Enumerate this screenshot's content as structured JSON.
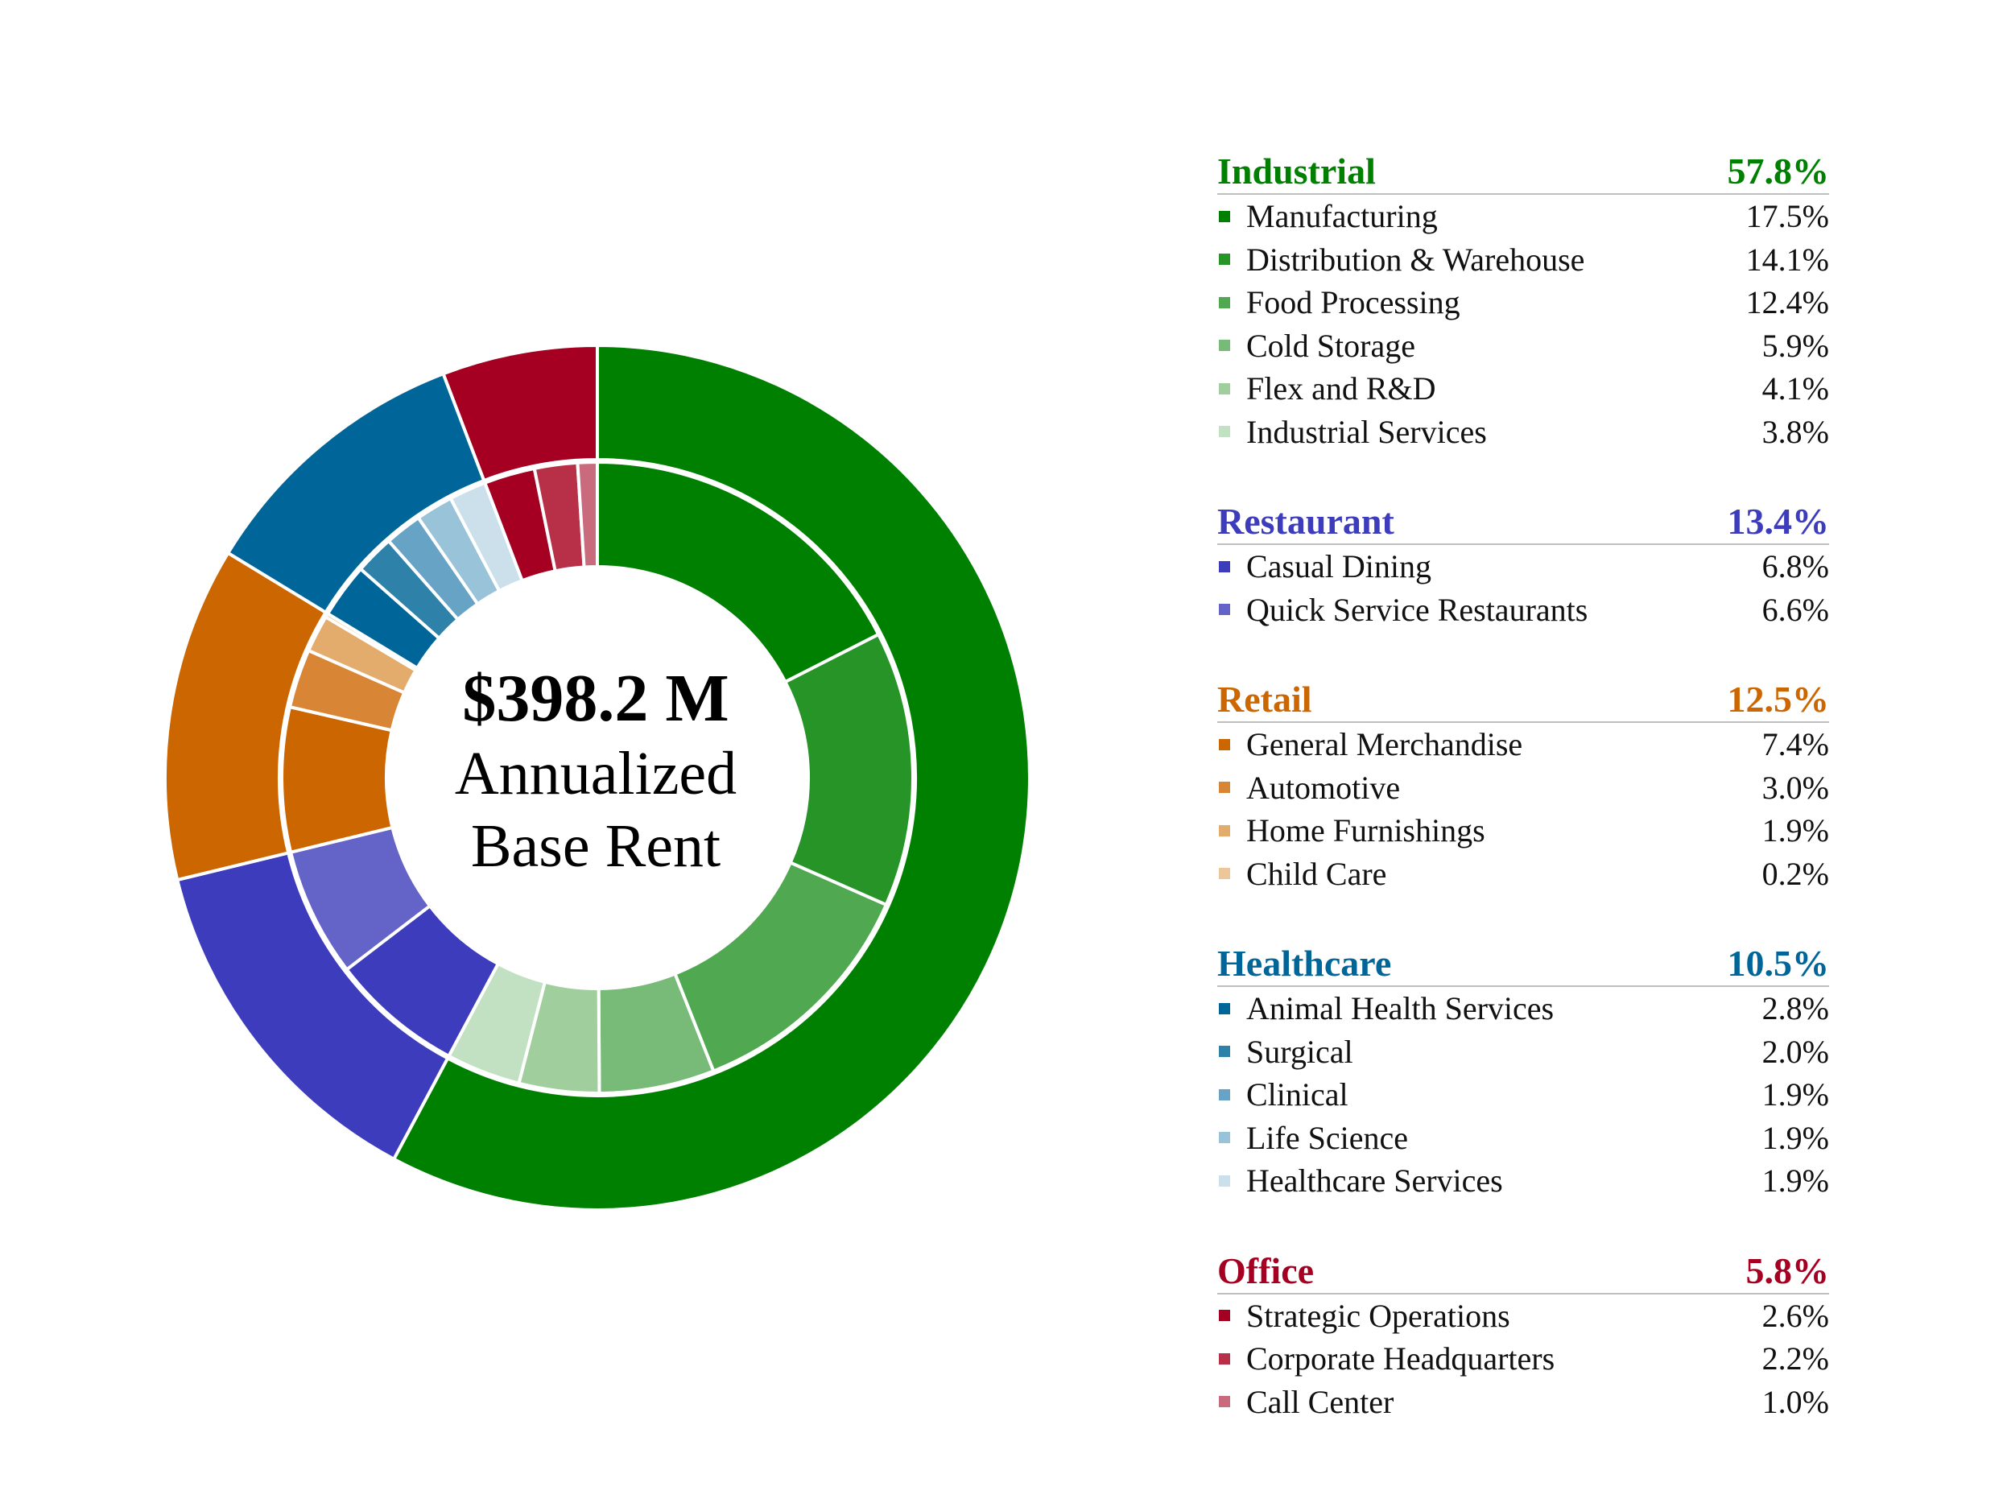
{
  "chart_data": {
    "type": "pie",
    "variant": "nested-donut",
    "center": {
      "amount": "$398.2 M",
      "line1": "Annualized",
      "line2": "Base Rent"
    },
    "groups": [
      {
        "name": "Industrial",
        "value": 57.8,
        "label": "57.8%",
        "color": "#008000",
        "items": [
          {
            "name": "Manufacturing",
            "value": 17.5,
            "label": "17.5%",
            "color": "#008000"
          },
          {
            "name": "Distribution & Warehouse",
            "value": 14.1,
            "label": "14.1%",
            "color": "#279427"
          },
          {
            "name": "Food Processing",
            "value": 12.4,
            "label": "12.4%",
            "color": "#50a850"
          },
          {
            "name": "Cold Storage",
            "value": 5.9,
            "label": "5.9%",
            "color": "#78bb78"
          },
          {
            "name": "Flex and R&D",
            "value": 4.1,
            "label": "4.1%",
            "color": "#a0cf9d"
          },
          {
            "name": "Industrial Services",
            "value": 3.8,
            "label": "3.8%",
            "color": "#c2e1c2"
          }
        ]
      },
      {
        "name": "Restaurant",
        "value": 13.4,
        "label": "13.4%",
        "color": "#3c3cbc",
        "items": [
          {
            "name": "Casual Dining",
            "value": 6.8,
            "label": "6.8%",
            "color": "#3c3cbc"
          },
          {
            "name": "Quick Service Restaurants",
            "value": 6.6,
            "label": "6.6%",
            "color": "#6464c8"
          }
        ]
      },
      {
        "name": "Retail",
        "value": 12.5,
        "label": "12.5%",
        "color": "#cc6600",
        "items": [
          {
            "name": "General Merchandise",
            "value": 7.4,
            "label": "7.4%",
            "color": "#cc6600"
          },
          {
            "name": "Automotive",
            "value": 3.0,
            "label": "3.0%",
            "color": "#d88535"
          },
          {
            "name": "Home Furnishings",
            "value": 1.9,
            "label": "1.9%",
            "color": "#e3ac6c"
          },
          {
            "name": "Child Care",
            "value": 0.2,
            "label": "0.2%",
            "color": "#edc79a"
          }
        ]
      },
      {
        "name": "Healthcare",
        "value": 10.5,
        "label": "10.5%",
        "color": "#006699",
        "items": [
          {
            "name": "Animal Health Services",
            "value": 2.8,
            "label": "2.8%",
            "color": "#006699"
          },
          {
            "name": "Surgical",
            "value": 2.0,
            "label": "2.0%",
            "color": "#2e82aa"
          },
          {
            "name": "Clinical",
            "value": 1.9,
            "label": "1.9%",
            "color": "#66a3c4"
          },
          {
            "name": "Life Science",
            "value": 1.9,
            "label": "1.9%",
            "color": "#99c3d8"
          },
          {
            "name": "Healthcare Services",
            "value": 1.9,
            "label": "1.9%",
            "color": "#cce0eb"
          }
        ]
      },
      {
        "name": "Office",
        "value": 5.8,
        "label": "5.8%",
        "color": "#a50021",
        "items": [
          {
            "name": "Strategic Operations",
            "value": 2.6,
            "label": "2.6%",
            "color": "#a50021"
          },
          {
            "name": "Corporate Headquarters",
            "value": 2.2,
            "label": "2.2%",
            "color": "#b83048"
          },
          {
            "name": "Call Center",
            "value": 1.0,
            "label": "1.0%",
            "color": "#c96b7c"
          }
        ]
      }
    ]
  }
}
